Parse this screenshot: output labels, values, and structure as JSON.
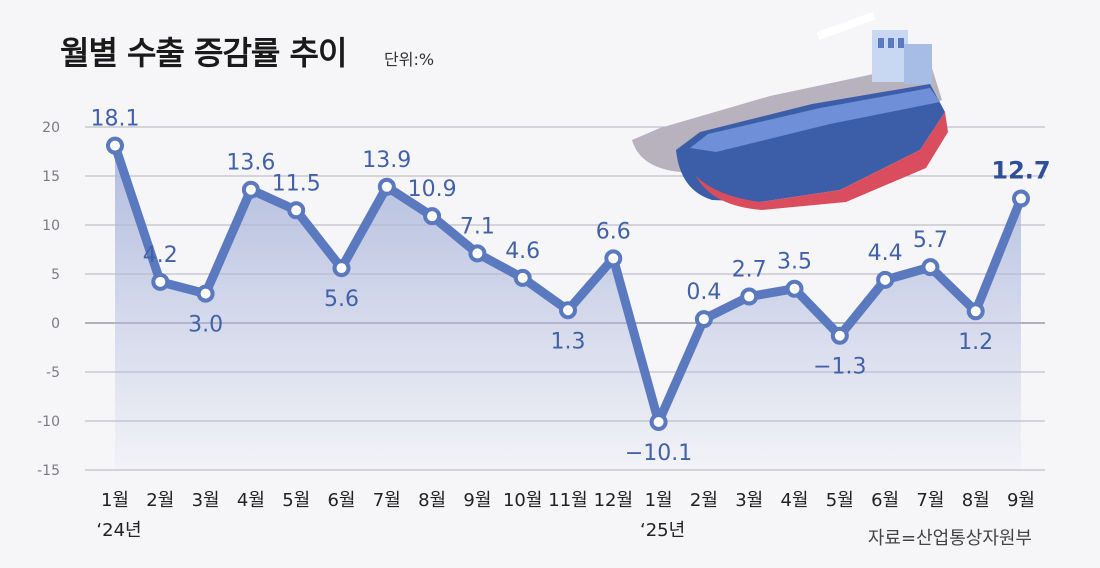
{
  "title": "월별 수출 증감률 추이",
  "unit": "단위:%",
  "source": "자료=산업통상자원부",
  "colors": {
    "line": "#5b79bf",
    "label": "#4361a8",
    "label_strong": "#2f4f99",
    "area_top": "#aeb9dc",
    "grid": "#9a9aa6"
  },
  "illustration": "container-ship",
  "chart_data": {
    "type": "line",
    "x": [
      "1월",
      "2월",
      "3월",
      "4월",
      "5월",
      "6월",
      "7월",
      "8월",
      "9월",
      "10월",
      "11월",
      "12월",
      "1월",
      "2월",
      "3월",
      "4월",
      "5월",
      "6월",
      "7월",
      "8월",
      "9월"
    ],
    "year_labels": [
      {
        "index": 0,
        "text": "‘24년"
      },
      {
        "index": 12,
        "text": "‘25년"
      }
    ],
    "values": [
      18.1,
      4.2,
      3.0,
      13.6,
      11.5,
      5.6,
      13.9,
      10.9,
      7.1,
      4.6,
      1.3,
      6.6,
      -10.1,
      0.4,
      2.7,
      3.5,
      -1.3,
      4.4,
      5.7,
      1.2,
      12.7
    ],
    "labels": [
      "18.1",
      "4.2",
      "3.0",
      "13.6",
      "11.5",
      "5.6",
      "13.9",
      "10.9",
      "7.1",
      "4.6",
      "1.3",
      "6.6",
      "−10.1",
      "0.4",
      "2.7",
      "3.5",
      "−1.3",
      "4.4",
      "5.7",
      "1.2",
      "12.7"
    ],
    "highlight_last": true,
    "yticks": [
      "20",
      "15",
      "10",
      "5",
      "0",
      "-5",
      "-10",
      "-15"
    ],
    "ylim": [
      -15,
      20
    ],
    "grid": true,
    "legend": false
  }
}
